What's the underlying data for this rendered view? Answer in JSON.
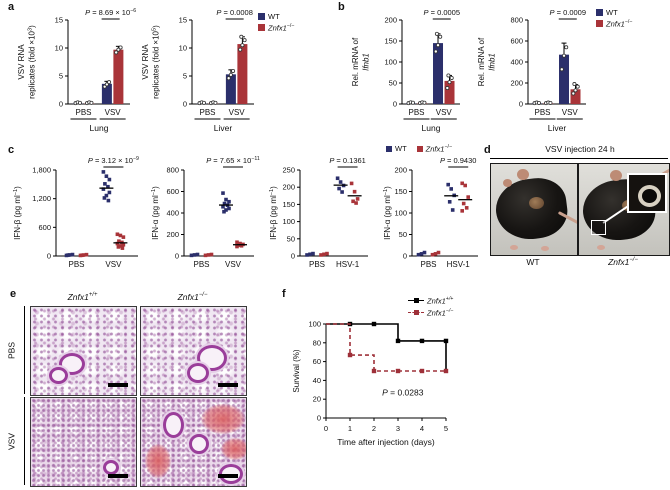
{
  "figure": {
    "panels": {
      "a": {
        "label": "a"
      },
      "b": {
        "label": "b"
      },
      "c": {
        "label": "c"
      },
      "d": {
        "label": "d",
        "title": "VSV injection 24 h",
        "captions": [
          "WT",
          "*Znfx1*^{−/−}"
        ]
      },
      "e": {
        "label": "e",
        "col_headers": [
          "*Znfx1*^{+/+}",
          "*Znfx1*^{−/−}"
        ],
        "row_labels": [
          "PBS",
          "VSV"
        ]
      },
      "f": {
        "label": "f"
      }
    },
    "legend_ab": {
      "wt": "WT",
      "ko": "*Znfx1*^{−/−}",
      "wt_color": "#2b2f6b",
      "ko_color": "#a93439"
    },
    "legend_f": {
      "wt": "*Znfx1*^{+/+}",
      "ko": "*Znfx1*^{−/−}",
      "wt_color": "#000000",
      "ko_color": "#9e3039"
    }
  },
  "chart_data": [
    {
      "id": "a1",
      "type": "bar",
      "title": "",
      "ylabel_lines": [
        "VSV RNA",
        "replicates (fold ×10^{3})"
      ],
      "ylim": [
        0,
        15
      ],
      "yticks": [
        0,
        5,
        10,
        15
      ],
      "ytick_labels": [
        "0",
        "5",
        "10",
        "15"
      ],
      "groups": [
        "PBS",
        "VSV"
      ],
      "section_label": "Lung",
      "p_label": "*P* = 8.69 × 10^{−6}",
      "series": [
        {
          "name": "WT",
          "color": "#2b2f6b",
          "values": [
            0.08,
            3.6
          ],
          "errors": [
            0,
            0.45
          ],
          "dots": [
            [
              0.15,
              0.3,
              0.2
            ],
            [
              3.1,
              3.5,
              3.9
            ]
          ]
        },
        {
          "name": "*Znfx1*^{−/−}",
          "color": "#a93439",
          "values": [
            0.08,
            9.7
          ],
          "errors": [
            0,
            0.6
          ],
          "dots": [
            [
              0.15,
              0.3,
              0.2
            ],
            [
              9.2,
              9.7,
              10.1
            ]
          ]
        }
      ]
    },
    {
      "id": "a2",
      "type": "bar",
      "title": "",
      "ylabel_lines": [
        "VSV RNA",
        "replicates (fold ×10^{5})"
      ],
      "ylim": [
        0,
        15
      ],
      "yticks": [
        0,
        5,
        10,
        15
      ],
      "ytick_labels": [
        "0",
        "5",
        "10",
        "15"
      ],
      "groups": [
        "PBS",
        "VSV"
      ],
      "section_label": "Liver",
      "p_label": "*P* = 0.0008",
      "series": [
        {
          "name": "WT",
          "color": "#2b2f6b",
          "values": [
            0.08,
            5.3
          ],
          "errors": [
            0,
            0.8
          ],
          "dots": [
            [
              0.15,
              0.3,
              0.2
            ],
            [
              4.6,
              5.2,
              5.9
            ]
          ]
        },
        {
          "name": "*Znfx1*^{−/−}",
          "color": "#a93439",
          "values": [
            0.08,
            10.7
          ],
          "errors": [
            0,
            1.3
          ],
          "dots": [
            [
              0.15,
              0.3,
              0.2
            ],
            [
              9.7,
              10.5,
              11.4,
              12.0
            ]
          ]
        }
      ]
    },
    {
      "id": "b1",
      "type": "bar",
      "title": "",
      "ylabel_lines": [
        "Rel. mRNA of",
        "*Ifnb1*"
      ],
      "ylim": [
        0,
        200
      ],
      "yticks": [
        0,
        50,
        100,
        150,
        200
      ],
      "ytick_labels": [
        "0",
        "50",
        "100",
        "150",
        "200"
      ],
      "groups": [
        "PBS",
        "VSV"
      ],
      "section_label": "Lung",
      "p_label": "*P* = 0.0005",
      "series": [
        {
          "name": "WT",
          "color": "#2b2f6b",
          "values": [
            1.5,
            145
          ],
          "errors": [
            0,
            22
          ],
          "dots": [
            [
              2,
              4,
              3
            ],
            [
              125,
              140,
              160,
              167
            ]
          ]
        },
        {
          "name": "*Znfx1*^{−/−}",
          "color": "#a93439",
          "values": [
            1.5,
            55
          ],
          "errors": [
            0,
            13
          ],
          "dots": [
            [
              2,
              4,
              3
            ],
            [
              38,
              52,
              62,
              68
            ]
          ]
        }
      ]
    },
    {
      "id": "b2",
      "type": "bar",
      "title": "",
      "ylabel_lines": [
        "Rel. mRNA of",
        "*Ifnb1*"
      ],
      "ylim": [
        0,
        800
      ],
      "yticks": [
        0,
        200,
        400,
        600,
        800
      ],
      "ytick_labels": [
        "0",
        "200",
        "400",
        "600",
        "800"
      ],
      "groups": [
        "PBS",
        "VSV"
      ],
      "section_label": "Liver",
      "p_label": "*P* = 0.0009",
      "series": [
        {
          "name": "WT",
          "color": "#2b2f6b",
          "values": [
            6,
            470
          ],
          "errors": [
            0,
            110
          ],
          "dots": [
            [
              8,
              14,
              10
            ],
            [
              330,
              460,
              540
            ]
          ]
        },
        {
          "name": "*Znfx1*^{−/−}",
          "color": "#a93439",
          "values": [
            6,
            140
          ],
          "errors": [
            0,
            45
          ],
          "dots": [
            [
              8,
              14,
              10
            ],
            [
              100,
              130,
              165,
              190
            ]
          ]
        }
      ]
    },
    {
      "id": "c1",
      "type": "scatter",
      "title": "",
      "ylabel": "IFN-β (pg ml^{−1})",
      "ylim": [
        0,
        1800
      ],
      "yticks": [
        0,
        600,
        1200,
        1800
      ],
      "ytick_labels": [
        "0",
        "600",
        "1,200",
        "1,800"
      ],
      "groups": [
        "PBS",
        "VSV"
      ],
      "p_label": "*P* = 3.12 × 10^{−9}",
      "series": [
        {
          "name": "WT",
          "color": "#2b2f6b",
          "points": [
            [
              12,
              22,
              30,
              18
            ],
            [
              1760,
              1670,
              1600,
              1510,
              1450,
              1400,
              1330,
              1265,
              1215,
              1160
            ]
          ],
          "means": [
            null,
            1420
          ]
        },
        {
          "name": "*Znfx1*^{−/−}",
          "color": "#a93439",
          "points": [
            [
              12,
              20,
              28,
              16
            ],
            [
              455,
              430,
              395,
              310,
              285,
              260,
              235,
              210,
              190,
              165
            ]
          ],
          "means": [
            null,
            275
          ]
        }
      ]
    },
    {
      "id": "c2",
      "type": "scatter",
      "title": "",
      "ylabel": "IFN-α (pg ml^{−1})",
      "ylim": [
        0,
        800
      ],
      "yticks": [
        0,
        200,
        400,
        600,
        800
      ],
      "ytick_labels": [
        "0",
        "200",
        "400",
        "600",
        "800"
      ],
      "groups": [
        "PBS",
        "VSV"
      ],
      "p_label": "*P* = 7.65 × 10^{−11}",
      "series": [
        {
          "name": "WT",
          "color": "#2b2f6b",
          "points": [
            [
              6,
              10,
              14
            ],
            [
              585,
              525,
              505,
              488,
              472,
              458,
              442,
              428,
              412
            ]
          ],
          "means": [
            null,
            474
          ]
        },
        {
          "name": "*Znfx1*^{−/−}",
          "color": "#a93439",
          "points": [
            [
              6,
              10,
              14
            ],
            [
              128,
              116,
              108,
              101,
              95,
              88
            ]
          ],
          "means": [
            null,
            105
          ]
        }
      ]
    },
    {
      "id": "c3",
      "type": "scatter",
      "title": "",
      "ylabel": "IFN-β (pg ml^{−1})",
      "ylim": [
        0,
        250
      ],
      "yticks": [
        0,
        50,
        100,
        150,
        200,
        250
      ],
      "ytick_labels": [
        "0",
        "50",
        "100",
        "150",
        "200",
        "250"
      ],
      "groups": [
        "PBS",
        "HSV-1"
      ],
      "p_label": "*P* = 0.1361",
      "series": [
        {
          "name": "WT",
          "color": "#2b2f6b",
          "points": [
            [
              3,
              5,
              7
            ],
            [
              226,
              215,
              205,
              196,
              186
            ]
          ],
          "means": [
            null,
            206
          ]
        },
        {
          "name": "*Znfx1*^{−/−}",
          "color": "#a93439",
          "points": [
            [
              3,
              5,
              7
            ],
            [
              211,
              187,
              166,
              159,
              154
            ]
          ],
          "means": [
            null,
            175
          ]
        }
      ]
    },
    {
      "id": "c4",
      "type": "scatter",
      "title": "",
      "ylabel": "IFN-α (pg ml^{−1})",
      "ylim": [
        0,
        200
      ],
      "yticks": [
        0,
        50,
        100,
        150,
        200
      ],
      "ytick_labels": [
        "0",
        "50",
        "100",
        "150",
        "200"
      ],
      "groups": [
        "PBS",
        "HSV-1"
      ],
      "p_label": "*P* = 0.9430",
      "series": [
        {
          "name": "WT",
          "color": "#2b2f6b",
          "points": [
            [
              3,
              5,
              8
            ],
            [
              166,
              156,
              141,
              126,
              107
            ]
          ],
          "means": [
            null,
            140
          ]
        },
        {
          "name": "*Znfx1*^{−/−}",
          "color": "#a93439",
          "points": [
            [
              3,
              5,
              8
            ],
            [
              169,
              164,
              137,
              122,
              112,
              105
            ]
          ],
          "means": [
            null,
            131
          ]
        }
      ]
    },
    {
      "id": "f",
      "type": "stepline",
      "title": "",
      "ylabel": "Survival (%)",
      "xlabel": "Time after injection (days)",
      "ylim": [
        0,
        100
      ],
      "yticks": [
        0,
        20,
        40,
        60,
        80,
        100
      ],
      "xlim": [
        0,
        5
      ],
      "xticks": [
        0,
        1,
        2,
        3,
        4,
        5
      ],
      "p_label": "*P* = 0.0283",
      "p_at": [
        3.2,
        24
      ],
      "series": [
        {
          "name": "*Znfx1*^{+/+}",
          "color": "#000000",
          "dash": false,
          "steps": [
            [
              0,
              100
            ],
            [
              3,
              100
            ],
            [
              3,
              82
            ],
            [
              5,
              82
            ],
            [
              5,
              50
            ]
          ],
          "markers": [
            [
              1,
              100
            ],
            [
              2,
              100
            ],
            [
              3,
              82
            ],
            [
              4,
              82
            ],
            [
              5,
              82
            ]
          ]
        },
        {
          "name": "*Znfx1*^{−/−}",
          "color": "#9e3039",
          "dash": true,
          "steps": [
            [
              0,
              100
            ],
            [
              1,
              100
            ],
            [
              1,
              67
            ],
            [
              2,
              67
            ],
            [
              2,
              50
            ],
            [
              5,
              50
            ]
          ],
          "markers": [
            [
              1,
              67
            ],
            [
              2,
              50
            ],
            [
              3,
              50
            ],
            [
              4,
              50
            ],
            [
              5,
              50
            ]
          ]
        }
      ]
    }
  ]
}
